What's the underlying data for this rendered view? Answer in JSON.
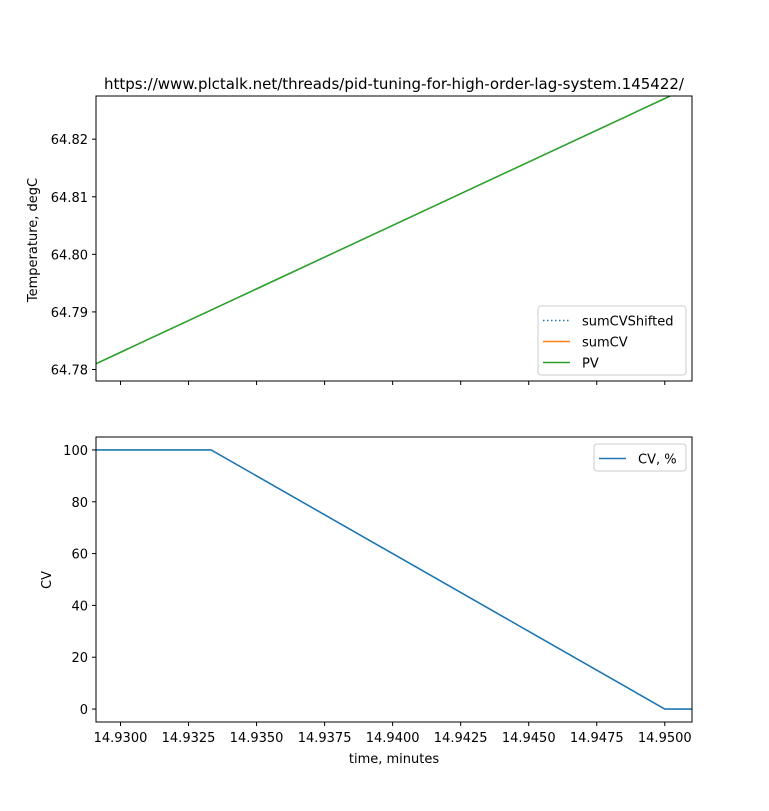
{
  "chart_data": [
    {
      "type": "line",
      "title": "https://www.plctalk.net/threads/pid-tuning-for-high-order-lag-system.145422/",
      "xlabel": "",
      "ylabel": "Temperature, degC",
      "xlim": [
        14.9291,
        14.951
      ],
      "ylim": [
        64.778,
        64.8275
      ],
      "yticks": [
        64.78,
        64.79,
        64.8,
        64.81,
        64.82
      ],
      "ytick_labels": [
        "64.78",
        "64.79",
        "64.80",
        "64.81",
        "64.82"
      ],
      "xticks": [
        14.93,
        14.9325,
        14.935,
        14.9375,
        14.94,
        14.9425,
        14.945,
        14.9475,
        14.95
      ],
      "show_xtick_labels": false,
      "legend_position": "lower-right",
      "grid": false,
      "series": [
        {
          "name": "sumCVShifted",
          "color": "#1f77b4",
          "style": "dotted",
          "x": [],
          "y": []
        },
        {
          "name": "sumCV",
          "color": "#ff7f0e",
          "style": "solid",
          "x": [],
          "y": []
        },
        {
          "name": "PV",
          "color": "#2ca02c",
          "style": "solid",
          "x": [
            14.9291,
            14.9502
          ],
          "y": [
            64.781,
            64.8275
          ]
        }
      ]
    },
    {
      "type": "line",
      "title": "",
      "xlabel": "time, minutes",
      "ylabel": "CV",
      "xlim": [
        14.9291,
        14.951
      ],
      "ylim": [
        -5,
        105
      ],
      "yticks": [
        0,
        20,
        40,
        60,
        80,
        100
      ],
      "ytick_labels": [
        "0",
        "20",
        "40",
        "60",
        "80",
        "100"
      ],
      "xticks": [
        14.93,
        14.9325,
        14.935,
        14.9375,
        14.94,
        14.9425,
        14.945,
        14.9475,
        14.95
      ],
      "xtick_labels": [
        "14.9300",
        "14.9325",
        "14.9350",
        "14.9375",
        "14.9400",
        "14.9425",
        "14.9450",
        "14.9475",
        "14.9500"
      ],
      "show_xtick_labels": true,
      "legend_position": "upper-right",
      "grid": false,
      "series": [
        {
          "name": "CV, %",
          "color": "#1f77b4",
          "style": "solid",
          "x": [
            14.9291,
            14.93333,
            14.95,
            14.951
          ],
          "y": [
            100,
            100,
            0,
            0
          ]
        }
      ]
    }
  ]
}
